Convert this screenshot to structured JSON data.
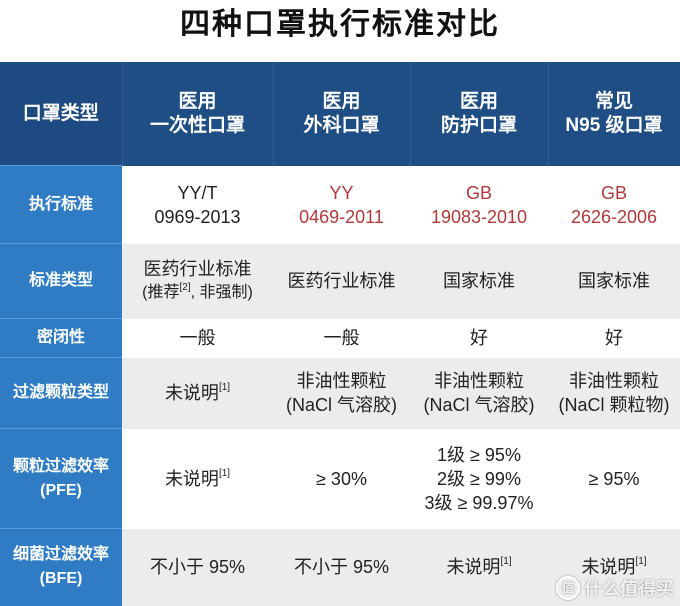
{
  "title": "四种口罩执行标准对比",
  "header": {
    "row_label": "口罩类型",
    "columns": [
      {
        "line1": "医用",
        "line2": "一次性口罩"
      },
      {
        "line1": "医用",
        "line2": "外科口罩"
      },
      {
        "line1": "医用",
        "line2": "防护口罩"
      },
      {
        "line1": "常见",
        "line2": "N95 级口罩"
      }
    ]
  },
  "rows": [
    {
      "label": "执行标准",
      "cells": [
        {
          "line1": "YY/T",
          "line2": "0969-2013"
        },
        {
          "line1": "YY",
          "line2": "0469-2011"
        },
        {
          "line1": "GB",
          "line2": "19083-2010"
        },
        {
          "line1": "GB",
          "line2": "2626-2006"
        }
      ]
    },
    {
      "label": "标准类型",
      "cells": [
        {
          "line1": "医药行业标准",
          "line2": "(推荐",
          "sup": "[2]",
          "line2b": ", 非强制)"
        },
        {
          "line1": "医药行业标准"
        },
        {
          "line1": "国家标准"
        },
        {
          "line1": "国家标准"
        }
      ]
    },
    {
      "label": "密闭性",
      "cells": [
        {
          "line1": "一般"
        },
        {
          "line1": "一般"
        },
        {
          "line1": "好"
        },
        {
          "line1": "好"
        }
      ]
    },
    {
      "label": "过滤颗粒类型",
      "cells": [
        {
          "line1": "未说明",
          "sup": "[1]"
        },
        {
          "line1": "非油性颗粒",
          "line2": "(NaCl 气溶胶)"
        },
        {
          "line1": "非油性颗粒",
          "line2": "(NaCl 气溶胶)"
        },
        {
          "line1": "非油性颗粒",
          "line2": "(NaCl 颗粒物)"
        }
      ]
    },
    {
      "label": "颗粒过滤效率",
      "label2": "(PFE)",
      "cells": [
        {
          "line1": "未说明",
          "sup": "[1]"
        },
        {
          "line1": "≥ 30%"
        },
        {
          "line1": "1级 ≥ 95%",
          "line2": "2级 ≥ 99%",
          "line3": "3级 ≥ 99.97%"
        },
        {
          "line1": "≥ 95%"
        }
      ]
    },
    {
      "label": "细菌过滤效率",
      "label2": "(BFE)",
      "cells": [
        {
          "line1": "不小于 95%"
        },
        {
          "line1": "不小于 95%"
        },
        {
          "line1": "未说明",
          "sup": "[1]"
        },
        {
          "line1": "未说明",
          "sup": "[1]"
        }
      ]
    }
  ],
  "watermark": "什么值得买",
  "colors": {
    "header": "#1f4e85",
    "label_column": "#2f7cc4",
    "standard_code": "#b03a3a",
    "alt_row": "#ececec"
  }
}
